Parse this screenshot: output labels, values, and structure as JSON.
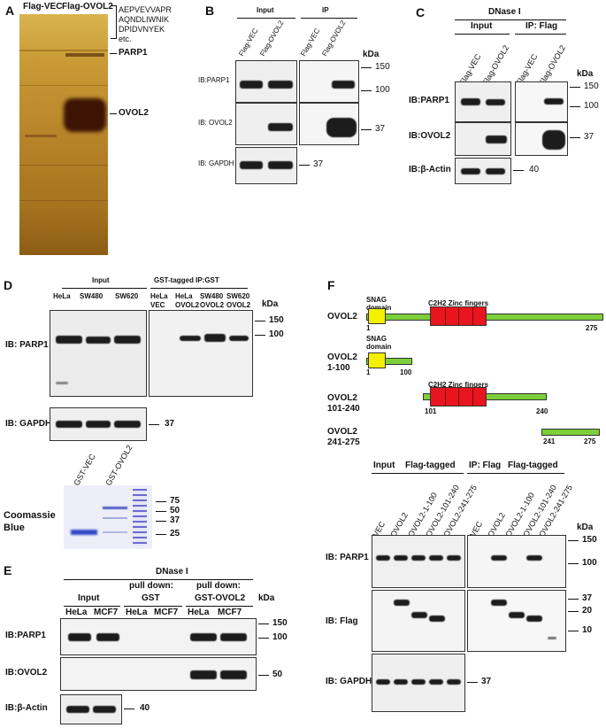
{
  "panels": {
    "A": {
      "letter": "A",
      "lanes": [
        "Flag-VEC",
        "Flag-OVOL2"
      ],
      "peptides": [
        "AEPVEVVAPR",
        "AQNDLIWNIK",
        "DPIDVNYEK",
        "etc."
      ],
      "bands": [
        "PARP1",
        "OVOL2"
      ]
    },
    "B": {
      "letter": "B",
      "groups": [
        "Input",
        "IP"
      ],
      "lanes": [
        "Flag-VEC",
        "Flag-OVOL2",
        "Flag-VEC",
        "Flag-OVOL2"
      ],
      "kda_label": "kDa",
      "rows": [
        {
          "label": "IB:PARP1",
          "markers": [
            "150",
            "100"
          ]
        },
        {
          "label": "IB: OVOL2",
          "markers": [
            "37"
          ]
        },
        {
          "label": "IB: GAPDH",
          "markers": [
            "37"
          ]
        }
      ]
    },
    "C": {
      "letter": "C",
      "title": "DNase I",
      "groups": [
        "Input",
        "IP: Flag"
      ],
      "lanes": [
        "Flag-VEC",
        "Flag-OVOL2",
        "Flag-VEC",
        "Flag-OVOL2"
      ],
      "kda_label": "kDa",
      "rows": [
        {
          "label": "IB:PARP1",
          "markers": [
            "150",
            "100"
          ]
        },
        {
          "label": "IB:OVOL2",
          "markers": [
            "37"
          ]
        },
        {
          "label": "IB:β-Actin",
          "markers": [
            "40"
          ]
        }
      ]
    },
    "D": {
      "letter": "D",
      "groups": [
        "Input",
        "GST-tagged  IP:GST"
      ],
      "lanes_top": [
        "HeLa",
        "SW480",
        "SW620",
        "HeLa",
        "HeLa",
        "SW480",
        "SW620"
      ],
      "lanes_bottom": [
        "VEC",
        "OVOL2",
        "OVOL2",
        "OVOL2"
      ],
      "kda_label": "kDa",
      "rows": [
        {
          "label": "IB: PARP1",
          "markers": [
            "150",
            "100"
          ]
        },
        {
          "label": "IB: GAPDH",
          "markers": [
            "37"
          ]
        }
      ],
      "gel_lanes": [
        "GST-VEC",
        "GST-OVOL2"
      ],
      "gel_label_1": "Coomassie",
      "gel_label_2": "Blue",
      "gel_markers": [
        "75",
        "50",
        "37",
        "25"
      ]
    },
    "E": {
      "letter": "E",
      "title": "DNase I",
      "groups": [
        "Input",
        "pull down:",
        "GST",
        "pull down:",
        "GST-OVOL2"
      ],
      "lanes": [
        "HeLa",
        "MCF7",
        "HeLa",
        "MCF7",
        "HeLa",
        "MCF7"
      ],
      "kda_label": "kDa",
      "rows": [
        {
          "label": "IB:PARP1",
          "markers": [
            "150",
            "100"
          ]
        },
        {
          "label": "IB:OVOL2",
          "markers": [
            "50"
          ]
        },
        {
          "label": "IB:β-Actin",
          "markers": [
            "40"
          ]
        }
      ]
    },
    "F": {
      "letter": "F",
      "constructs": [
        {
          "name": "OVOL2",
          "name2": "",
          "start": "1",
          "end": "275",
          "snag": "SNAG",
          "snag2": "domain",
          "zinc": "C2H2 Zinc fingers"
        },
        {
          "name": "OVOL2",
          "name2": "1-100",
          "start": "1",
          "end": "100",
          "snag": "SNAG",
          "snag2": "domain"
        },
        {
          "name": "OVOL2",
          "name2": "101-240",
          "start": "101",
          "end": "240",
          "zinc": "C2H2 Zinc fingers"
        },
        {
          "name": "OVOL2",
          "name2": "241-275",
          "start": "241",
          "end": "275"
        }
      ],
      "groups": [
        "Input",
        "Flag-tagged",
        "IP: Flag",
        "Flag-tagged"
      ],
      "lanes": [
        "VEC",
        "OVOL2",
        "OVOL2-1-100",
        "OVOL2-101-240",
        "OVOL2-241-275",
        "VEC",
        "OVOL2",
        "OVOL2-1-100",
        "OVOL2-101-240",
        "OVOL2-241-275"
      ],
      "kda_label": "kDa",
      "rows": [
        {
          "label": "IB: PARP1",
          "markers": [
            "150",
            "100"
          ]
        },
        {
          "label": "IB: Flag",
          "markers": [
            "37",
            "20",
            "10"
          ]
        },
        {
          "label": "IB: GAPDH",
          "markers": [
            "37"
          ]
        }
      ]
    }
  },
  "colors": {
    "snag": "#f3f000",
    "zinc": "#e8141e",
    "bar": "#7ccf3a",
    "gel_bg": "#b88a2a"
  }
}
